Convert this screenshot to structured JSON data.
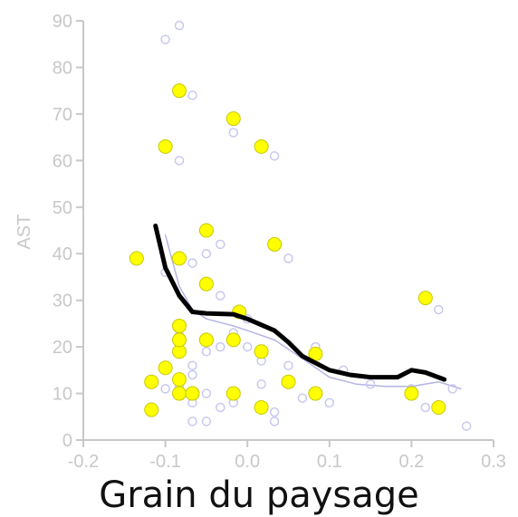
{
  "chart_data": {
    "type": "scatter",
    "title": "",
    "caption": "Grain du paysage",
    "ylabel": "AST",
    "xlim": [
      -0.2,
      0.3
    ],
    "ylim": [
      0,
      90
    ],
    "x_ticks": [
      -0.2,
      -0.1,
      0.0,
      0.1,
      0.2,
      0.3
    ],
    "x_tick_labels": [
      "-0.2",
      "-0.1",
      "0.0",
      "0.1",
      "0.2",
      "0.3"
    ],
    "y_ticks": [
      0,
      10,
      20,
      30,
      40,
      50,
      60,
      70,
      80,
      90
    ],
    "y_tick_labels": [
      "0",
      "10",
      "20",
      "30",
      "40",
      "50",
      "60",
      "70",
      "80",
      "90"
    ],
    "grid": false,
    "colors": {
      "highlight_points": "#ffff00",
      "highlight_edge": "#c8c800",
      "background_points": "#c8c8f0",
      "smooth_line": "#000000",
      "faint_line": "#b4b4e6",
      "axis": "#c8c8c8"
    },
    "series": [
      {
        "kind": "highlighted_points",
        "points": [
          [
            -0.135,
            39
          ],
          [
            -0.117,
            6.5
          ],
          [
            -0.117,
            12.5
          ],
          [
            -0.1,
            15.5
          ],
          [
            -0.1,
            63
          ],
          [
            -0.083,
            10
          ],
          [
            -0.083,
            13
          ],
          [
            -0.083,
            19
          ],
          [
            -0.083,
            21.5
          ],
          [
            -0.083,
            24.5
          ],
          [
            -0.083,
            39
          ],
          [
            -0.083,
            75
          ],
          [
            -0.067,
            10
          ],
          [
            -0.05,
            21.5
          ],
          [
            -0.05,
            33.5
          ],
          [
            -0.05,
            45
          ],
          [
            -0.017,
            21.5
          ],
          [
            -0.017,
            69
          ],
          [
            -0.01,
            27.5
          ],
          [
            -0.017,
            10
          ],
          [
            0.017,
            63
          ],
          [
            0.017,
            19
          ],
          [
            0.017,
            7
          ],
          [
            0.033,
            42
          ],
          [
            0.05,
            12.5
          ],
          [
            0.083,
            18.5
          ],
          [
            0.083,
            10
          ],
          [
            0.2,
            10
          ],
          [
            0.217,
            30.5
          ],
          [
            0.233,
            7
          ]
        ]
      },
      {
        "kind": "background_points",
        "points": [
          [
            -0.1,
            86
          ],
          [
            -0.083,
            89
          ],
          [
            -0.067,
            74
          ],
          [
            -0.083,
            60
          ],
          [
            -0.017,
            66
          ],
          [
            0.033,
            61
          ],
          [
            -0.1,
            36
          ],
          [
            -0.067,
            38
          ],
          [
            -0.05,
            40
          ],
          [
            0.05,
            39
          ],
          [
            -0.033,
            42
          ],
          [
            -0.05,
            22
          ],
          [
            -0.033,
            20
          ],
          [
            -0.05,
            19
          ],
          [
            -0.083,
            22.5
          ],
          [
            -0.083,
            20
          ],
          [
            -0.067,
            16
          ],
          [
            -0.067,
            14
          ],
          [
            -0.1,
            11
          ],
          [
            -0.083,
            11.5
          ],
          [
            -0.067,
            8
          ],
          [
            -0.05,
            10
          ],
          [
            -0.05,
            4
          ],
          [
            -0.033,
            7
          ],
          [
            -0.017,
            8
          ],
          [
            0.0,
            26
          ],
          [
            -0.017,
            23
          ],
          [
            0.0,
            20
          ],
          [
            0.017,
            17
          ],
          [
            0.017,
            12
          ],
          [
            0.033,
            6
          ],
          [
            0.033,
            4
          ],
          [
            0.05,
            16
          ],
          [
            0.067,
            9
          ],
          [
            0.083,
            20
          ],
          [
            0.1,
            8
          ],
          [
            0.117,
            15
          ],
          [
            0.15,
            12
          ],
          [
            0.2,
            11
          ],
          [
            0.217,
            7
          ],
          [
            0.233,
            28
          ],
          [
            0.25,
            11
          ],
          [
            0.267,
            3
          ],
          [
            -0.033,
            31
          ],
          [
            -0.067,
            4
          ]
        ]
      },
      {
        "kind": "smooth_line",
        "points": [
          [
            -0.112,
            46
          ],
          [
            -0.1,
            37
          ],
          [
            -0.083,
            31
          ],
          [
            -0.067,
            27.5
          ],
          [
            -0.05,
            27.2
          ],
          [
            -0.017,
            27
          ],
          [
            0.0,
            26
          ],
          [
            0.033,
            23.5
          ],
          [
            0.05,
            21
          ],
          [
            0.067,
            18
          ],
          [
            0.1,
            15
          ],
          [
            0.125,
            14
          ],
          [
            0.15,
            13.5
          ],
          [
            0.183,
            13.5
          ],
          [
            0.2,
            15
          ],
          [
            0.217,
            14.5
          ],
          [
            0.24,
            13
          ]
        ]
      },
      {
        "kind": "faint_line",
        "points": [
          [
            -0.1,
            44
          ],
          [
            -0.083,
            33
          ],
          [
            -0.067,
            28
          ],
          [
            -0.05,
            26
          ],
          [
            -0.017,
            24.5
          ],
          [
            0.0,
            23.5
          ],
          [
            0.033,
            21.5
          ],
          [
            0.067,
            17.5
          ],
          [
            0.1,
            13.5
          ],
          [
            0.133,
            12
          ],
          [
            0.167,
            11.5
          ],
          [
            0.2,
            11.5
          ],
          [
            0.233,
            12.5
          ],
          [
            0.26,
            11
          ]
        ]
      }
    ]
  }
}
